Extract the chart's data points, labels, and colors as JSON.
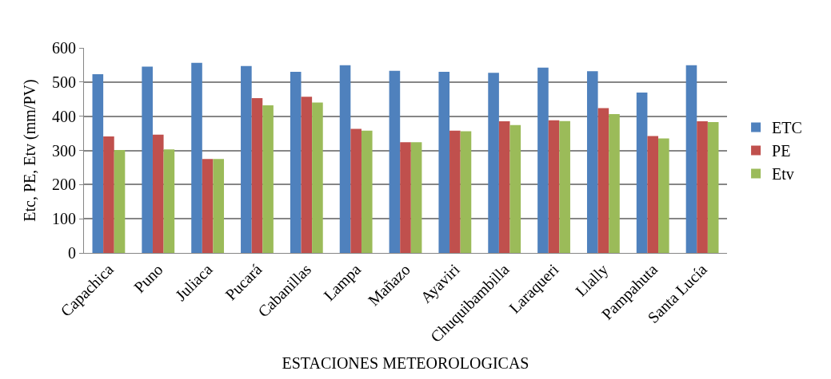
{
  "chart_data": {
    "type": "bar",
    "xlabel": "ESTACIONES METEOROLOGICAS",
    "ylabel": "Etc, PE, Etv (mm/PV)",
    "categories": [
      "Capachica",
      "Puno",
      "Juliaca",
      "Pucará",
      "Cabanillas",
      "Lampa",
      "Mañazo",
      "Ayaviri",
      "Chuquibambilla",
      "Laraqueri",
      "Llally",
      "Pampahuta",
      "Santa Lucía"
    ],
    "series": [
      {
        "name": "ETC",
        "color": "#4f81bd",
        "values": [
          523,
          545,
          556,
          547,
          530,
          549,
          533,
          530,
          527,
          542,
          532,
          469,
          549
        ]
      },
      {
        "name": "PE",
        "color": "#c0504d",
        "values": [
          341,
          346,
          275,
          453,
          457,
          363,
          324,
          358,
          385,
          388,
          424,
          342,
          385
        ]
      },
      {
        "name": "Etv",
        "color": "#9bbb59",
        "values": [
          301,
          303,
          275,
          432,
          440,
          358,
          324,
          356,
          374,
          386,
          406,
          335,
          383
        ]
      }
    ],
    "ylim": [
      0,
      600
    ],
    "yticks": [
      0,
      100,
      200,
      300,
      400,
      500,
      600
    ],
    "grid": "y",
    "legend": "right"
  }
}
